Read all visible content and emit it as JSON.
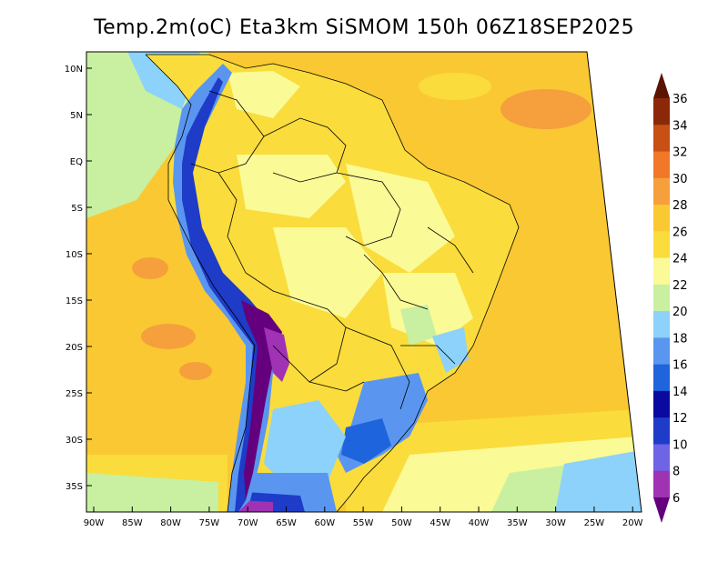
{
  "title": "Temp.2m(oC) Eta3km SiSMOM 150h 06Z18SEP2025",
  "map": {
    "lat_ticks": [
      "10N",
      "5N",
      "EQ",
      "5S",
      "10S",
      "15S",
      "20S",
      "25S",
      "30S",
      "35S"
    ],
    "lon_ticks": [
      "90W",
      "85W",
      "80W",
      "75W",
      "70W",
      "65W",
      "60W",
      "55W",
      "50W",
      "45W",
      "40W",
      "35W",
      "30W",
      "25W",
      "20W"
    ]
  },
  "colorbar": {
    "levels": [
      "6",
      "8",
      "10",
      "12",
      "14",
      "16",
      "18",
      "20",
      "22",
      "24",
      "26",
      "28",
      "30",
      "32",
      "34",
      "36"
    ],
    "colors": [
      "#64007d",
      "#a032b4",
      "#6e64e6",
      "#1e3cc8",
      "#0a0aa0",
      "#1e64dc",
      "#5a96f0",
      "#8cd2fa",
      "#c8f0a0",
      "#fafa96",
      "#fadc3c",
      "#fac832",
      "#f5a03c",
      "#f07828",
      "#c85014",
      "#8c280a",
      "#5a1400"
    ]
  }
}
